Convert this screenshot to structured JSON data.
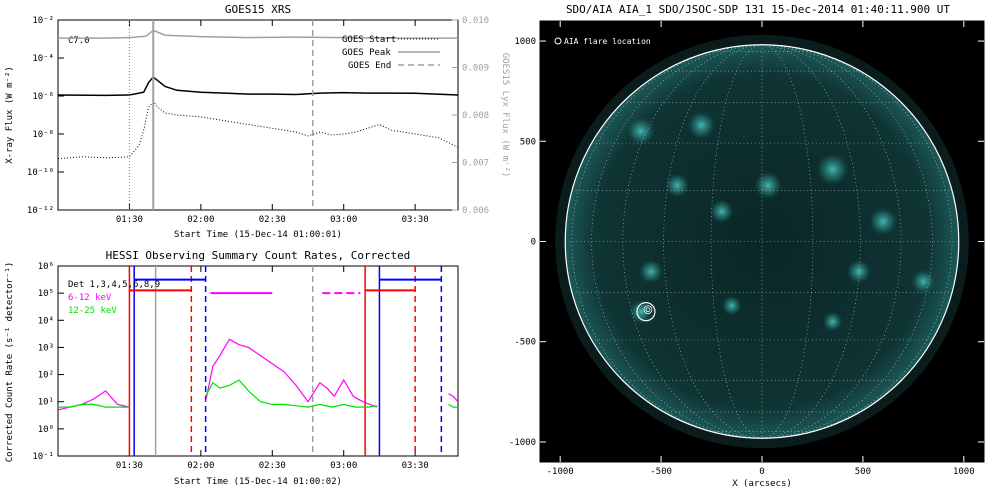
{
  "colors": {
    "goes_long": "#000000",
    "goes_short": "#000000",
    "lyx": "#a0a0a0",
    "hessi_6_12": "#ff00ff",
    "hessi_12_25": "#00e000",
    "hessi_det": "#000000",
    "attenuator": "#ff0000",
    "night": "#0000ff",
    "saa": "#ff00ff",
    "marker_gray": "#a0a0a0",
    "sun_bg": "#000000",
    "sun_disk": "#0b2b2b",
    "sun_active": "#3fb7b0",
    "limb": "#ffffff"
  },
  "chart_data": [
    {
      "type": "line",
      "title": "GOES15 XRS",
      "xlabel": "Start Time (15-Dec-14 01:00:01)",
      "ylabel": "X-ray Flux (W m⁻²)",
      "ylabel_right": "GOES15 Lyx Flux (W m⁻²)",
      "x_ticks": [
        "01:30",
        "02:00",
        "02:30",
        "03:00",
        "03:30"
      ],
      "x_tick_minutes": [
        30,
        60,
        90,
        120,
        150
      ],
      "xlim_minutes": [
        0,
        168
      ],
      "y_ticks": [
        "10⁻²",
        "10⁻⁴",
        "10⁻⁶",
        "10⁻⁸",
        "10⁻¹⁰",
        "10⁻¹²"
      ],
      "y_tick_exponents": [
        -2,
        -4,
        -6,
        -8,
        -10,
        -12
      ],
      "ylim_log10": [
        -12,
        -2
      ],
      "y_ticks_right": [
        "0.010",
        "0.009",
        "0.008",
        "0.007",
        "0.006"
      ],
      "y_ticks_right_values": [
        0.01,
        0.009,
        0.008,
        0.007,
        0.006
      ],
      "ylim_right": [
        0.006,
        0.01
      ],
      "scale": "log",
      "annotation": "C7.0",
      "legend_position": "top-right",
      "legend": [
        {
          "label": "GOES Start",
          "style": "dotted",
          "x_minute": 30
        },
        {
          "label": "GOES Peak",
          "style": "solid",
          "x_minute": 40
        },
        {
          "label": "GOES End",
          "style": "dashed",
          "x_minute": 107
        }
      ],
      "series": [
        {
          "id": "lyx",
          "axis": "right",
          "x": [
            0,
            20,
            30,
            37,
            40,
            45,
            60,
            80,
            100,
            120,
            140,
            168
          ],
          "y": [
            0.00962,
            0.00962,
            0.00963,
            0.00966,
            0.00978,
            0.00968,
            0.00965,
            0.00963,
            0.00964,
            0.00963,
            0.00962,
            0.00962
          ]
        },
        {
          "id": "long",
          "axis": "left",
          "x": [
            0,
            20,
            30,
            36,
            38,
            40,
            42,
            45,
            50,
            60,
            70,
            80,
            90,
            100,
            110,
            120,
            130,
            140,
            150,
            168
          ],
          "y": [
            -5.95,
            -5.97,
            -5.95,
            -5.8,
            -5.3,
            -5.0,
            -5.2,
            -5.5,
            -5.7,
            -5.8,
            -5.85,
            -5.9,
            -5.9,
            -5.92,
            -5.85,
            -5.82,
            -5.85,
            -5.85,
            -5.86,
            -5.95
          ]
        },
        {
          "id": "short",
          "axis": "left",
          "x": [
            0,
            10,
            20,
            30,
            34,
            36,
            38,
            40,
            42,
            45,
            50,
            60,
            70,
            80,
            90,
            100,
            105,
            110,
            115,
            120,
            125,
            130,
            135,
            140,
            150,
            160,
            168
          ],
          "y": [
            -9.3,
            -9.2,
            -9.25,
            -9.2,
            -8.6,
            -7.8,
            -6.6,
            -6.3,
            -6.6,
            -6.9,
            -7.0,
            -7.1,
            -7.3,
            -7.5,
            -7.7,
            -7.9,
            -8.1,
            -7.9,
            -8.05,
            -8.0,
            -7.9,
            -7.7,
            -7.5,
            -7.8,
            -8.0,
            -8.2,
            -8.7
          ]
        }
      ]
    },
    {
      "type": "line",
      "title": "HESSI Observing Summary Count Rates, Corrected",
      "xlabel": "Start Time (15-Dec-14 01:00:02)",
      "ylabel": "Corrected Count Rate (s⁻¹ detector⁻¹)",
      "x_ticks": [
        "01:30",
        "02:00",
        "02:30",
        "03:00",
        "03:30"
      ],
      "x_tick_minutes": [
        30,
        60,
        90,
        120,
        150
      ],
      "xlim_minutes": [
        0,
        168
      ],
      "y_ticks": [
        "10⁶",
        "10⁵",
        "10⁴",
        "10³",
        "10²",
        "10¹",
        "10⁰",
        "10⁻¹"
      ],
      "y_tick_exponents": [
        6,
        5,
        4,
        3,
        2,
        1,
        0,
        -1
      ],
      "ylim_log10": [
        -1,
        6
      ],
      "scale": "log",
      "legend_position": "top-left",
      "legend": [
        {
          "label": "Det 1,3,4,5,6,8,9",
          "color": "#000000"
        },
        {
          "label": "6-12 keV",
          "color": "#ff00ff"
        },
        {
          "label": "12-25 keV",
          "color": "#00e000"
        }
      ],
      "vertical_markers": [
        {
          "x_minute": 30,
          "color": "#ff0000",
          "style": "solid"
        },
        {
          "x_minute": 32,
          "color": "#0000ff",
          "style": "solid"
        },
        {
          "x_minute": 41,
          "color": "#a0a0a0",
          "style": "solid"
        },
        {
          "x_minute": 56,
          "color": "#ff0000",
          "style": "dashed"
        },
        {
          "x_minute": 62,
          "color": "#0000ff",
          "style": "dashed"
        },
        {
          "x_minute": 107,
          "color": "#a0a0a0",
          "style": "dashed"
        },
        {
          "x_minute": 129,
          "color": "#ff0000",
          "style": "solid"
        },
        {
          "x_minute": 135,
          "color": "#0000ff",
          "style": "solid"
        },
        {
          "x_minute": 150,
          "color": "#ff0000",
          "style": "dashed"
        },
        {
          "x_minute": 161,
          "color": "#0000ff",
          "style": "dashed"
        }
      ],
      "state_bars": [
        {
          "x": [
            32,
            62
          ],
          "y_log10": 5.5,
          "color": "#0000ff"
        },
        {
          "x": [
            30,
            56
          ],
          "y_log10": 5.1,
          "color": "#ff0000"
        },
        {
          "x": [
            64,
            90
          ],
          "y_log10": 5.0,
          "color": "#ff00ff"
        },
        {
          "x": [
            111,
            127
          ],
          "y_log10": 5.0,
          "color": "#ff00ff",
          "style": "dashed"
        },
        {
          "x": [
            135,
            161
          ],
          "y_log10": 5.5,
          "color": "#0000ff"
        },
        {
          "x": [
            129,
            150
          ],
          "y_log10": 5.1,
          "color": "#ff0000"
        }
      ],
      "series": [
        {
          "id": "6-12 keV",
          "segments": [
            {
              "x": [
                0,
                5,
                10,
                15,
                20,
                25,
                30
              ],
              "y": [
                0.7,
                0.8,
                0.9,
                1.1,
                1.4,
                0.9,
                0.8
              ]
            },
            {
              "x": [
                62,
                65,
                68,
                72,
                76,
                80,
                85,
                90,
                95,
                100,
                105,
                110,
                113,
                116,
                120,
                124,
                128,
                131,
                134
              ],
              "y": [
                1.0,
                2.3,
                2.7,
                3.3,
                3.1,
                3.0,
                2.7,
                2.4,
                2.1,
                1.6,
                1.0,
                1.7,
                1.5,
                1.2,
                1.8,
                1.2,
                1.0,
                0.9,
                0.8
              ]
            },
            {
              "x": [
                164,
                166,
                168
              ],
              "y": [
                1.3,
                1.2,
                1.0
              ]
            }
          ]
        },
        {
          "id": "12-25 keV",
          "segments": [
            {
              "x": [
                0,
                5,
                10,
                15,
                20,
                25,
                30
              ],
              "y": [
                0.8,
                0.8,
                0.9,
                0.9,
                0.8,
                0.8,
                0.8
              ]
            },
            {
              "x": [
                62,
                65,
                68,
                72,
                76,
                80,
                85,
                90,
                95,
                100,
                105,
                110,
                115,
                120,
                125,
                130,
                134
              ],
              "y": [
                1.2,
                1.7,
                1.5,
                1.6,
                1.8,
                1.4,
                1.0,
                0.9,
                0.9,
                0.85,
                0.8,
                0.9,
                0.8,
                0.9,
                0.8,
                0.8,
                0.85
              ]
            },
            {
              "x": [
                164,
                166,
                168
              ],
              "y": [
                0.9,
                0.8,
                0.8
              ]
            }
          ]
        }
      ]
    },
    {
      "type": "heatmap",
      "title": "SDO/AIA AIA_1 SDO/JSOC-SDP 131 15-Dec-2014 01:40:11.900 UT",
      "xlabel": "X (arcsecs)",
      "ylabel": "",
      "x_ticks": [
        "-1000",
        "-500",
        "0",
        "500",
        "1000"
      ],
      "x_tick_values": [
        -1000,
        -500,
        0,
        500,
        1000
      ],
      "y_ticks": [
        "1000",
        "500",
        "0",
        "-500",
        "-1000"
      ],
      "y_tick_values": [
        1000,
        500,
        0,
        -500,
        -1000
      ],
      "xlim": [
        -1100,
        1100
      ],
      "ylim": [
        -1100,
        1100
      ],
      "grid": "on",
      "legend_position": "top-left",
      "legend": [
        {
          "label": "AIA flare location"
        }
      ],
      "solar_radius_arcsec": 975,
      "flare_location": [
        -575,
        -350
      ],
      "active_regions": [
        {
          "x": -600,
          "y": 550,
          "r": 70
        },
        {
          "x": -420,
          "y": 280,
          "r": 60
        },
        {
          "x": -300,
          "y": 580,
          "r": 70
        },
        {
          "x": -200,
          "y": 150,
          "r": 60
        },
        {
          "x": 30,
          "y": 280,
          "r": 70
        },
        {
          "x": 350,
          "y": 360,
          "r": 80
        },
        {
          "x": 600,
          "y": 100,
          "r": 70
        },
        {
          "x": 480,
          "y": -150,
          "r": 60
        },
        {
          "x": 800,
          "y": -200,
          "r": 60
        },
        {
          "x": -150,
          "y": -320,
          "r": 50
        },
        {
          "x": 350,
          "y": -400,
          "r": 50
        },
        {
          "x": -550,
          "y": -150,
          "r": 60
        },
        {
          "x": -600,
          "y": -350,
          "r": 60
        }
      ]
    }
  ]
}
